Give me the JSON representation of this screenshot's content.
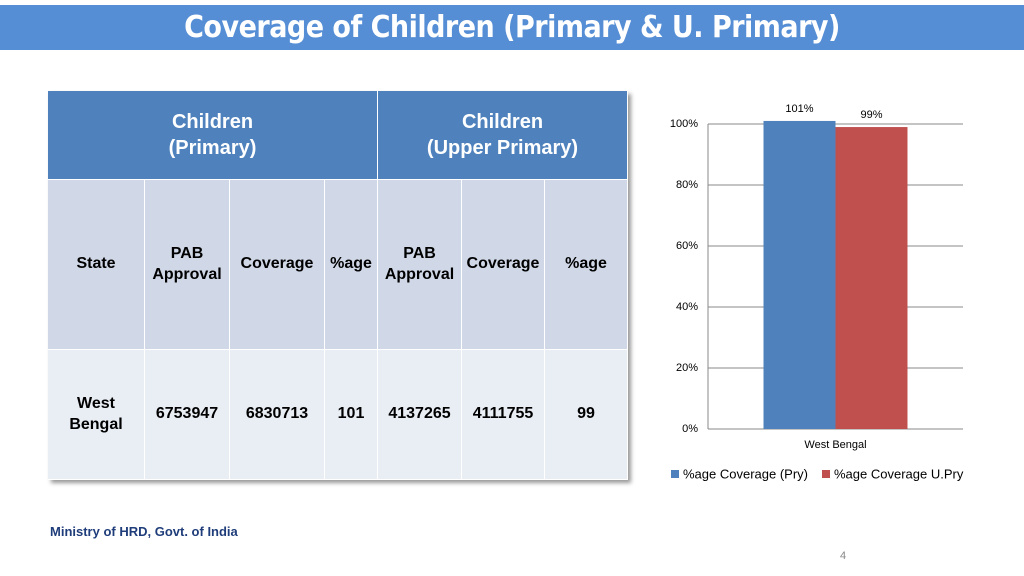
{
  "header": {
    "title": "Coverage of Children (Primary & U. Primary)"
  },
  "table": {
    "groups": [
      "Children\n(Primary)",
      "Children\n(Upper Primary)"
    ],
    "columns": [
      "State",
      "PAB\nApproval",
      "Coverage",
      "%age",
      "PAB\nApproval",
      "Coverage",
      "%age"
    ],
    "rows": [
      [
        "West\nBengal",
        "6753947",
        "6830713",
        "101",
        "4137265",
        "4111755",
        "99"
      ]
    ]
  },
  "chart_data": {
    "type": "bar",
    "categories": [
      "West Bengal"
    ],
    "series": [
      {
        "name": "%age Coverage (Pry)",
        "color": "#4f81bd",
        "values": [
          101
        ],
        "value_labels": [
          "101%"
        ]
      },
      {
        "name": "%age Coverage U.Pry",
        "color": "#c0504d",
        "values": [
          99
        ],
        "value_labels": [
          "99%"
        ]
      }
    ],
    "ylim": [
      0,
      100
    ],
    "yticks": [
      {
        "value": 0,
        "label": "0%"
      },
      {
        "value": 20,
        "label": "20%"
      },
      {
        "value": 40,
        "label": "40%"
      },
      {
        "value": 60,
        "label": "60%"
      },
      {
        "value": 80,
        "label": "80%"
      },
      {
        "value": 100,
        "label": "100%"
      }
    ],
    "grid": true,
    "legend": "bottom"
  },
  "footer": {
    "source": "Ministry of HRD, Govt. of India",
    "page": "4"
  }
}
